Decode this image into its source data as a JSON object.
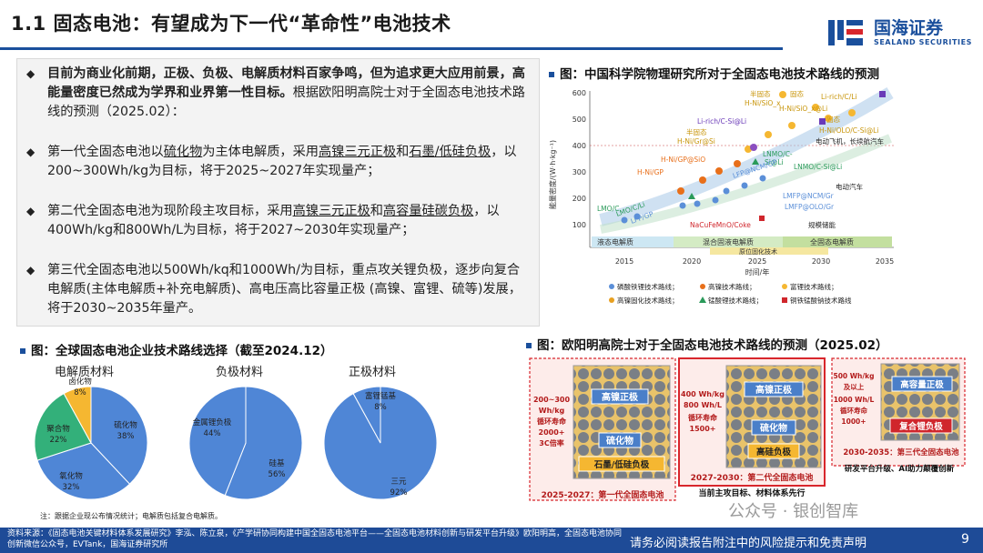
{
  "header": {
    "title": "1.1 固态电池：有望成为下一代“革命性”电池技术",
    "logo_cn": "国海证券",
    "logo_en": "SEALAND SECURITIES"
  },
  "bullets": {
    "b1_bold": "目前为商业化前期，正极、负极、电解质材料百家争鸣，但为追求更大应用前景，高能量密度已然成为学界和业界第一性目标。",
    "b1_rest": "根据欧阳明高院士对于全固态电池技术路线的预测（2025.02）：",
    "b2_a": "第一代全固态电池以",
    "b2_u1": "硫化物",
    "b2_b": "为主体电解质，采用",
    "b2_u2": "高镍三元正极",
    "b2_c": "和",
    "b2_u3": "石墨/低硅负极",
    "b2_d": "，以200~300Wh/kg为目标，将于2025~2027年实现量产；",
    "b3_a": "第二代全固态电池为现阶段主攻目标，采用",
    "b3_u1": "高镍三元正极",
    "b3_b": "和",
    "b3_u2": "高容量硅碳负极",
    "b3_c": "，以400Wh/kg和800Wh/L为目标，将于2027~2030年实现量产；",
    "b4": "第三代全固态电池以500Wh/kq和1000Wh/为目标，重点攻关锂负极，逐步向复合电解质(主体电解质+补充电解质)、高电压高比容量正极 (高镍、富锂、硫等)发展，将于2030~2035年量产。"
  },
  "fig1": {
    "caption": "图：中国科学院物理研究所对于全固态电池技术路线的预测",
    "ylabel": "能量密度/(W·h·kg⁻¹)",
    "xlabel": "时间/年",
    "yticks": [
      "600",
      "500",
      "400",
      "300",
      "200",
      "100"
    ],
    "xticks": [
      "2015",
      "2020",
      "2025",
      "2030",
      "2035"
    ],
    "bands": [
      "液态电解质",
      "混合固液电解质",
      "全固态电解质"
    ],
    "band2": "原位固化技术",
    "labels": [
      "Li-rich/C/Li",
      "半固态",
      "H-Ni/SiO_x",
      "固态",
      "H-Ni/SiO_x@Li",
      "Li-rich/C-Si@Li",
      "半固态",
      "H-Ni/Gr@Si",
      "固态",
      "H-Ni/OLO/C-Si@Li",
      "电动飞机，长续航汽车",
      "H-Ni/GP@SiO",
      "LNMO/C-",
      "Si@Li",
      "H-Ni/GP",
      "LFP@NCM/GP",
      "LNMO/C-Si@Li",
      "LMO/C",
      "LMO/C/Li",
      "LFP/GP",
      "电动汽车",
      "LMFP@NCM/Gr",
      "LMFP@OLO/Gr",
      "NaCuFeMnO/Coke",
      "规模储能"
    ],
    "legend": [
      "磷酸铁锂技术路线；",
      "高镍技术路线；",
      "富锂技术路线；",
      "高镍固化技术路线；",
      "锰酸锂技术路线；",
      "铜铁锰酸钠技术路线"
    ]
  },
  "fig2": {
    "caption": "图：全球固态电池企业技术路线选择（截至2024.12）",
    "titles": [
      "电解质材料",
      "负极材料",
      "正极材料"
    ],
    "pie1": [
      {
        "name": "硫化物",
        "pct": "38%",
        "value": 38
      },
      {
        "name": "氧化物",
        "pct": "32%",
        "value": 32
      },
      {
        "name": "聚合物",
        "pct": "22%",
        "value": 22
      },
      {
        "name": "卤化物",
        "pct": "8%",
        "value": 8
      }
    ],
    "pie2": [
      {
        "name": "硅基",
        "pct": "56%",
        "value": 56
      },
      {
        "name": "金属锂负极",
        "pct": "44%",
        "value": 44
      }
    ],
    "pie3": [
      {
        "name": "三元",
        "pct": "92%",
        "value": 92
      },
      {
        "name": "富锂锰基",
        "pct": "8%",
        "value": 8
      }
    ],
    "note": "注：跟据企业现公布情况统计；电解质包括复合电解质。"
  },
  "fig3": {
    "caption": "图：欧阳明高院士对于全固态电池技术路线的预测（2025.02）",
    "g1": {
      "spec": [
        "200~300",
        "Wh/kg",
        "循环寿命",
        "2000+",
        "3C倍率"
      ],
      "top": "高镍正极",
      "mid": "硫化物",
      "bot": "石墨/低硅负极",
      "footer": "2025-2027：第一代全固态电池"
    },
    "g2": {
      "spec": [
        "400 Wh/kg",
        "800 Wh/L",
        "循环寿命",
        "1500+"
      ],
      "top": "高镍正极",
      "mid": "硫化物",
      "bot": "高硅负极",
      "footer": "2027-2030：第二代全固态电池",
      "sub": "当前主攻目标、材料体系先行"
    },
    "g3": {
      "spec": [
        "500 Wh/kg",
        "及以上",
        "1000 Wh/L",
        "循环寿命",
        "1000+"
      ],
      "top": "高容量正极",
      "bot": "复合锂负极",
      "footer": "2030-2035：第三代全固态电池",
      "sub": "研发平台升级、AI助力颠覆创新"
    }
  },
  "footer": {
    "source": "资料来源：《固态电池关键材料体系发展研究》李泓、陈立泉，《产学研协同构建中国全固态电池平台——全固态电池材料创新与研发平台升级》欧阳明高，全固态电池协同创新微信公众号，EVTank，国海证券研究所",
    "disclaimer": "请务必阅读报告附注中的风险提示和免责声明",
    "page": "9",
    "watermark": "公众号 · 银创智库"
  },
  "colors": {
    "brand": "#1a4f9c",
    "pie_blue": "#4f86d6",
    "pie_green": "#33b07a",
    "pie_yellow": "#f5b731"
  }
}
